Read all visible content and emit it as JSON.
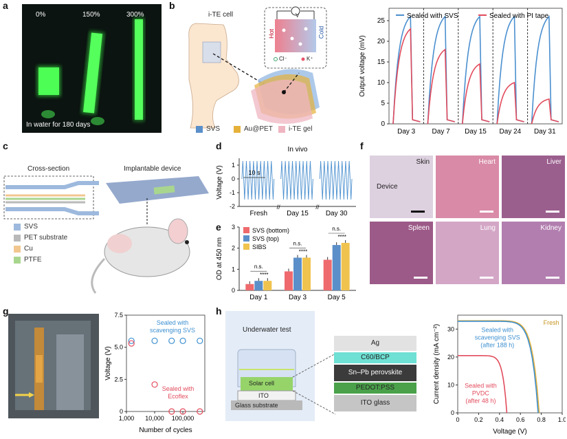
{
  "panel_labels": {
    "a": "a",
    "b": "b",
    "c": "c",
    "d": "d",
    "e": "e",
    "f": "f",
    "g": "g",
    "h": "h"
  },
  "panel_a": {
    "strains": [
      "0%",
      "150%",
      "300%"
    ],
    "caption": "In water for 180 days",
    "colors": {
      "bg": "#0b1410",
      "fiber": "#3dff4a"
    }
  },
  "panel_b_schematic": {
    "cell_label": "i-TE cell",
    "hot": "Hot",
    "cold": "Cold",
    "volt": "V",
    "ion_neg": "Cl⁻",
    "ion_pos": "K⁺",
    "legend": [
      {
        "label": "SVS",
        "color": "#5b8fc9"
      },
      {
        "label": "Au@PET",
        "color": "#e5b13a"
      },
      {
        "label": "i-TE gel",
        "color": "#efb6c1"
      }
    ]
  },
  "panel_c": {
    "cross_section": "Cross-section",
    "device": "Implantable device",
    "legend": [
      {
        "label": "SVS",
        "color": "#9db9dd"
      },
      {
        "label": "PET substrate",
        "color": "#b9b9b9"
      },
      {
        "label": "Cu",
        "color": "#f2c78f"
      },
      {
        "label": "PTFE",
        "color": "#a9d68f"
      }
    ]
  },
  "panel_f": {
    "tiles": [
      {
        "label": "Skin",
        "pointer": "Device",
        "bg": "#ddd0df"
      },
      {
        "label": "Heart",
        "bg": "#d98aa6"
      },
      {
        "label": "Liver",
        "bg": "#9b5f8e"
      },
      {
        "label": "Spleen",
        "bg": "#9c5a88"
      },
      {
        "label": "Lung",
        "bg": "#d3a6c6"
      },
      {
        "label": "Kidney",
        "bg": "#b27eaf"
      }
    ]
  },
  "panel_h_schematic": {
    "title": "Underwater test",
    "stack_left": [
      "Solar cell",
      "ITO",
      "Glass substrate"
    ],
    "layers": [
      {
        "label": "Ag",
        "color": "#e2e2e2"
      },
      {
        "label": "C60/BCP",
        "color": "#6ee0d4"
      },
      {
        "label": "Sn–Pb perovskite",
        "color": "#3b3b3b"
      },
      {
        "label": "PEDOT:PSS",
        "color": "#4aa14a"
      },
      {
        "label": "ITO glass",
        "color": "#c5c5c5"
      }
    ]
  },
  "chart_data": [
    {
      "id": "b",
      "type": "line",
      "title": "",
      "xlabel": "",
      "ylabel": "Output voltage (mV)",
      "ylim": [
        0,
        28
      ],
      "yticks": [
        0,
        5,
        10,
        15,
        20,
        25
      ],
      "categories": [
        "Day 3",
        "Day 7",
        "Day 15",
        "Day 24",
        "Day 31"
      ],
      "series": [
        {
          "name": "Sealed with SVS",
          "color": "#4a8fcf",
          "values": [
            26,
            26,
            26,
            26,
            26
          ]
        },
        {
          "name": "Sealed with PI tape",
          "color": "#e24b5c",
          "values": [
            23,
            18,
            14.5,
            10,
            6
          ]
        }
      ]
    },
    {
      "id": "d",
      "type": "line",
      "title": "In vivo",
      "ylabel": "Voltage (V)",
      "ylim": [
        -2,
        1.5
      ],
      "yticks": [
        -2,
        -1,
        0,
        1
      ],
      "categories": [
        "Fresh",
        "Day 15",
        "Day 30"
      ],
      "annotation": "10 s",
      "color": "#4a8fcf",
      "amplitude": [
        1.3,
        -1.5
      ]
    },
    {
      "id": "e",
      "type": "bar",
      "ylabel": "OD at 450 nm",
      "ylim": [
        0,
        3
      ],
      "yticks": [
        0,
        1,
        2,
        3
      ],
      "categories": [
        "Day 1",
        "Day 3",
        "Day 5"
      ],
      "series": [
        {
          "name": "SVS (bottom)",
          "color": "#ef6a6d",
          "values": [
            0.3,
            0.9,
            1.45
          ]
        },
        {
          "name": "SVS (top)",
          "color": "#5b8fc9",
          "values": [
            0.45,
            1.55,
            2.15
          ]
        },
        {
          "name": "SIBS",
          "color": "#f0c34e",
          "values": [
            0.45,
            1.55,
            2.25
          ]
        }
      ],
      "annotations": [
        {
          "cat": 0,
          "ns": "n.s.",
          "sig": "****"
        },
        {
          "cat": 1,
          "ns": "n.s.",
          "sig": "****"
        },
        {
          "cat": 2,
          "ns": "n.s.",
          "sig": "****"
        }
      ]
    },
    {
      "id": "g",
      "type": "scatter",
      "xlabel": "Number of cycles",
      "ylabel": "Voltage (V)",
      "xscale": "log",
      "xlim": [
        1000,
        600000
      ],
      "xticks": [
        "1,000",
        "10,000",
        "100,000"
      ],
      "ylim": [
        0,
        7.5
      ],
      "yticks": [
        0,
        2.5,
        5.0,
        7.5
      ],
      "series": [
        {
          "name": "Sealed with scavenging SVS",
          "color": "#3c8fd0",
          "points": [
            [
              1500,
              5.5
            ],
            [
              10000,
              5.5
            ],
            [
              40000,
              5.5
            ],
            [
              100000,
              5.5
            ],
            [
              400000,
              5.5
            ]
          ]
        },
        {
          "name": "Sealed with Ecoflex",
          "color": "#e24b5c",
          "points": [
            [
              1500,
              5.3
            ],
            [
              10000,
              2.1
            ],
            [
              40000,
              0
            ],
            [
              100000,
              0
            ],
            [
              400000,
              0
            ]
          ]
        }
      ],
      "labels": {
        "svs": [
          "Sealed with",
          "scavenging SVS"
        ],
        "eco": [
          "Sealed with",
          "Ecoflex"
        ]
      }
    },
    {
      "id": "h",
      "type": "line",
      "xlabel": "Voltage (V)",
      "ylabel": "Current density (mA cm⁻²)",
      "xlim": [
        0,
        1.0
      ],
      "ylim": [
        0,
        35
      ],
      "xticks": [
        0,
        0.2,
        0.4,
        0.6,
        0.8,
        1.0
      ],
      "yticks": [
        0,
        10,
        20,
        30
      ],
      "series": [
        {
          "name": "Fresh",
          "color": "#e5b13a",
          "isc": 33,
          "voc": 0.78
        },
        {
          "name": "Sealed with scavenging SVS (after 188 h)",
          "color": "#3c8fd0",
          "isc": 32.8,
          "voc": 0.77
        },
        {
          "name": "Sealed with PVDC (after 48 h)",
          "color": "#e24b5c",
          "isc": 20.5,
          "voc": 0.47
        }
      ],
      "labels": {
        "fresh": "Fresh",
        "svs": [
          "Sealed with",
          "scavenging SVS",
          "(after 188 h)"
        ],
        "pvdc": [
          "Sealed with",
          "PVDC",
          "(after 48 h)"
        ]
      }
    }
  ]
}
